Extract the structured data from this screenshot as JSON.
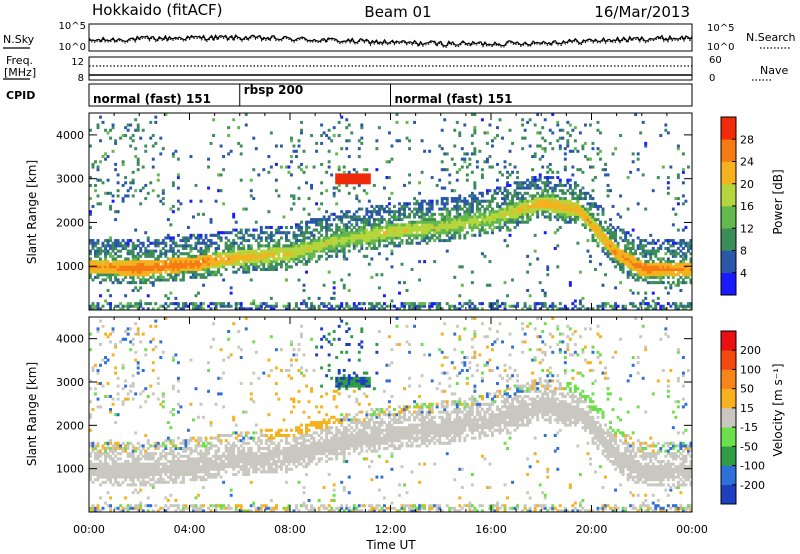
{
  "header": {
    "station": "Hokkaido (fitACF)",
    "beam": "Beam 01",
    "date": "16/Mar/2013"
  },
  "top_panels": {
    "nsky_label": "N.Sky",
    "nsearch_label": "N.Search",
    "log_ticks_left": [
      "10^5",
      "10^0"
    ],
    "log_ticks_right": [
      "10^5",
      "10^0"
    ],
    "freq_label_1": "Freq.",
    "freq_label_2": "[MHz]",
    "freq_ticks": [
      "12",
      "8"
    ],
    "nave_label": "Nave",
    "nave_ticks": [
      "60",
      "0"
    ],
    "cpid_label": "CPID",
    "cpid_segments": [
      {
        "label": "normal (fast) 151",
        "start_h": 0,
        "end_h": 6
      },
      {
        "label": "rbsp 200",
        "start_h": 6,
        "end_h": 12
      },
      {
        "label": "normal (fast) 151",
        "start_h": 12,
        "end_h": 24
      }
    ]
  },
  "axes": {
    "xlabel": "Time UT",
    "x_ticks": [
      "00:00",
      "04:00",
      "08:00",
      "12:00",
      "16:00",
      "20:00",
      "00:00"
    ],
    "ylabel": "Slant Range [km]",
    "y_ticks": [
      "1000",
      "2000",
      "3000",
      "4000"
    ]
  },
  "power_colorbar": {
    "label": "Power [dB]",
    "ticks": [
      "4",
      "8",
      "12",
      "16",
      "20",
      "24",
      "28"
    ],
    "colors": [
      "#1a1aff",
      "#2a57a8",
      "#3c8c5a",
      "#63b84e",
      "#b5d53c",
      "#f5b11e",
      "#f77b12",
      "#ef2b0a"
    ]
  },
  "velocity_colorbar": {
    "label": "Velocity [m s⁻¹]",
    "ticks": [
      "200",
      "100",
      "50",
      "15",
      "-15",
      "-50",
      "-100",
      "-200"
    ],
    "colors": [
      "#1e3fbf",
      "#2f6fd8",
      "#2e9c45",
      "#6be04a",
      "#c8c8c0",
      "#f5b11e",
      "#f7851a",
      "#f44a12",
      "#e81010"
    ]
  },
  "chart_data": [
    {
      "type": "heatmap",
      "title": "Power",
      "xlabel": "Time UT",
      "ylabel": "Slant Range [km]",
      "xlim": [
        0,
        24
      ],
      "ylim": [
        0,
        4500
      ],
      "colorbar": "Power [dB]",
      "main_echo_band": {
        "time_h": [
          0,
          2,
          4,
          6,
          8,
          10,
          12,
          14,
          16,
          18,
          19.5,
          21,
          22,
          24
        ],
        "range_km": [
          1000,
          950,
          1050,
          1200,
          1300,
          1600,
          1800,
          1900,
          2100,
          2450,
          2300,
          1300,
          950,
          950
        ],
        "peak_db": [
          26,
          28,
          28,
          24,
          22,
          20,
          22,
          20,
          20,
          24,
          24,
          26,
          28,
          26
        ]
      }
    },
    {
      "type": "heatmap",
      "title": "Velocity",
      "xlabel": "Time UT",
      "ylabel": "Slant Range [km]",
      "xlim": [
        0,
        24
      ],
      "ylim": [
        0,
        4500
      ],
      "colorbar": "Velocity [m s⁻¹]",
      "dominant_value_m_s": [
        -15,
        15
      ]
    }
  ]
}
